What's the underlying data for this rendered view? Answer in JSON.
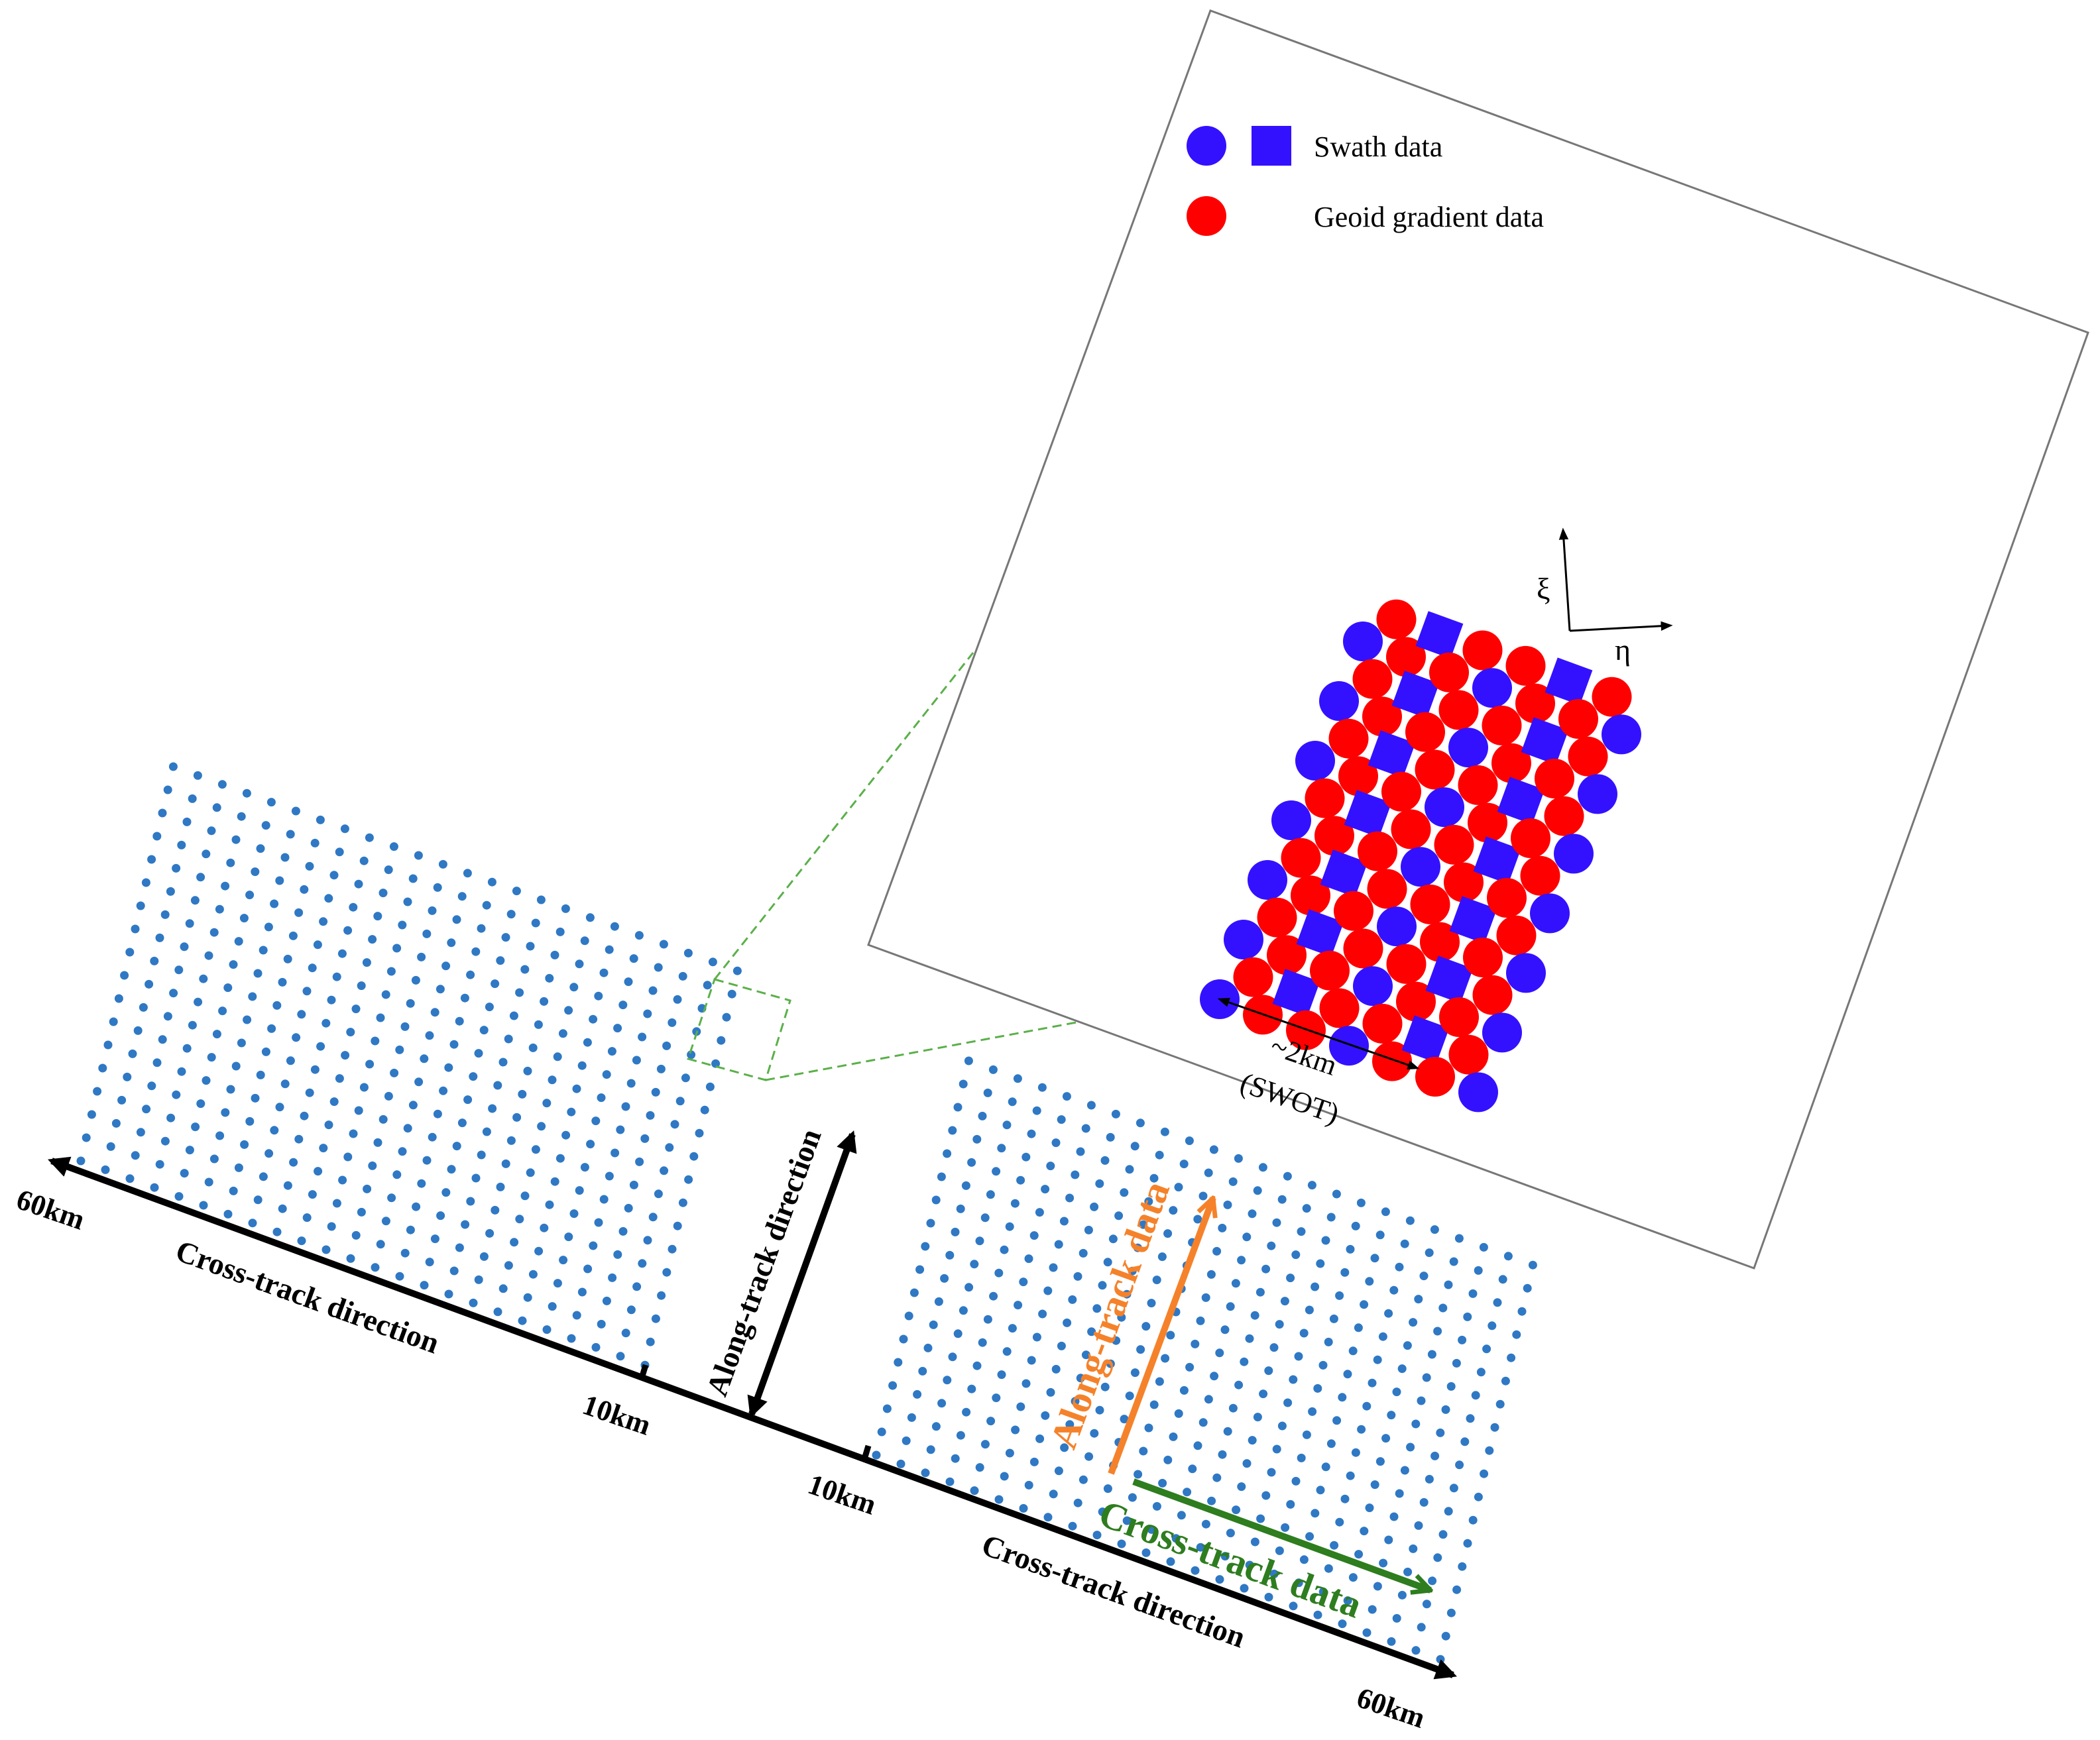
{
  "legend": {
    "swath_label": "Swath data",
    "geoid_label": "Geoid gradient data"
  },
  "axes": {
    "left_far": "60km",
    "left_near": "10km",
    "right_near": "10km",
    "right_far": "60km",
    "left_direction": "Cross-track direction",
    "right_direction": "Cross-track direction",
    "along_direction": "Along-track direction"
  },
  "annotations": {
    "along_track_data": "Along-track data",
    "cross_track_data": "Cross-track data",
    "spacing_value": "~2km",
    "spacing_mission": "(SWOT)",
    "xi": "ξ",
    "eta": "η"
  },
  "colors": {
    "swath_blue": "#3311ff",
    "geoid_red": "#ff0000",
    "grid_dot": "#2f78c4",
    "along_orange": "#f5822a",
    "cross_green": "#2e7d1f",
    "zoom_box": "#5bb04a",
    "axis_black": "#000000"
  }
}
